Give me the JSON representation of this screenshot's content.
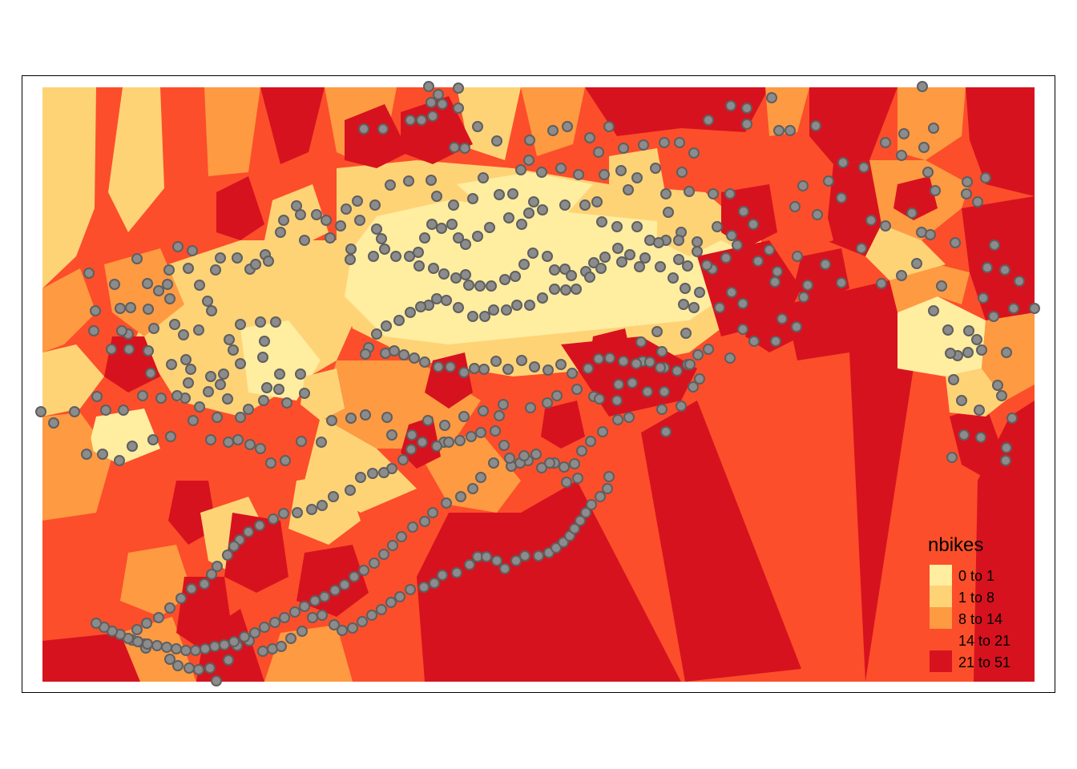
{
  "map": {
    "legend": {
      "title": "nbikes",
      "items": [
        {
          "label": "0 to 1",
          "color": "#ffeda0"
        },
        {
          "label": "1 to 8",
          "color": "#fed376"
        },
        {
          "label": "8 to 14",
          "color": "#fd9a42"
        },
        {
          "label": "14 to 21",
          "color": "#fc4e2a"
        },
        {
          "label": "21 to 51",
          "color": "#d7121f"
        }
      ]
    },
    "colors": {
      "frame": "#000000",
      "station_fill": "#8c8c8c",
      "station_stroke": "#5f5f5f"
    }
  }
}
